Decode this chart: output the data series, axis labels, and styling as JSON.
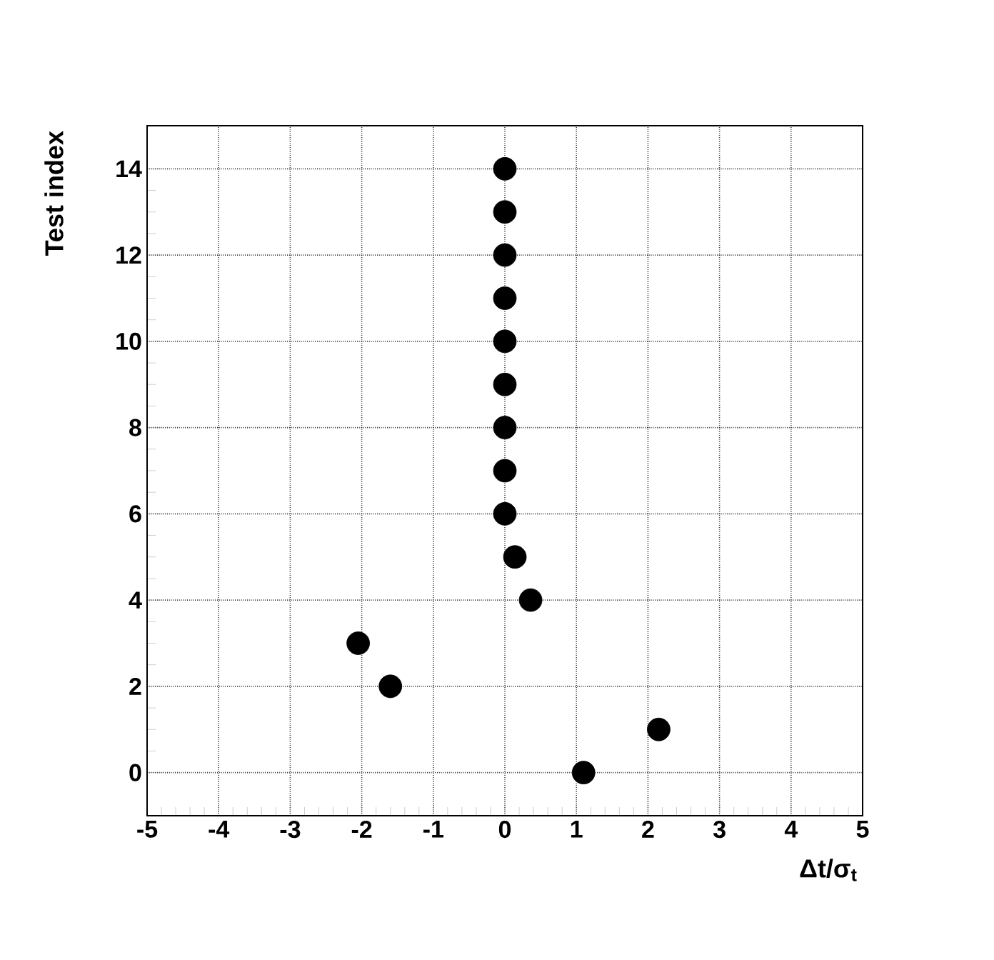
{
  "chart_data": {
    "type": "scatter",
    "xlabel": "Δt/σ$_{t}$",
    "ylabel": "Test index",
    "x": [
      1.1,
      2.15,
      -1.6,
      -2.05,
      0.36,
      0.14,
      0,
      0,
      0,
      0,
      0,
      0,
      0,
      0,
      0
    ],
    "values": [
      0,
      1,
      2,
      3,
      4,
      5,
      6,
      7,
      8,
      9,
      10,
      11,
      12,
      13,
      14
    ],
    "color": "#000000",
    "marker": "circle",
    "grid": true,
    "xlim": [
      -5,
      5
    ],
    "ylim": [
      -1,
      15
    ],
    "xticks": [
      -5,
      -4,
      -3,
      -2,
      -1,
      0,
      1,
      2,
      3,
      4,
      5
    ],
    "yticks": [
      0,
      2,
      4,
      6,
      8,
      10,
      12,
      14
    ]
  }
}
